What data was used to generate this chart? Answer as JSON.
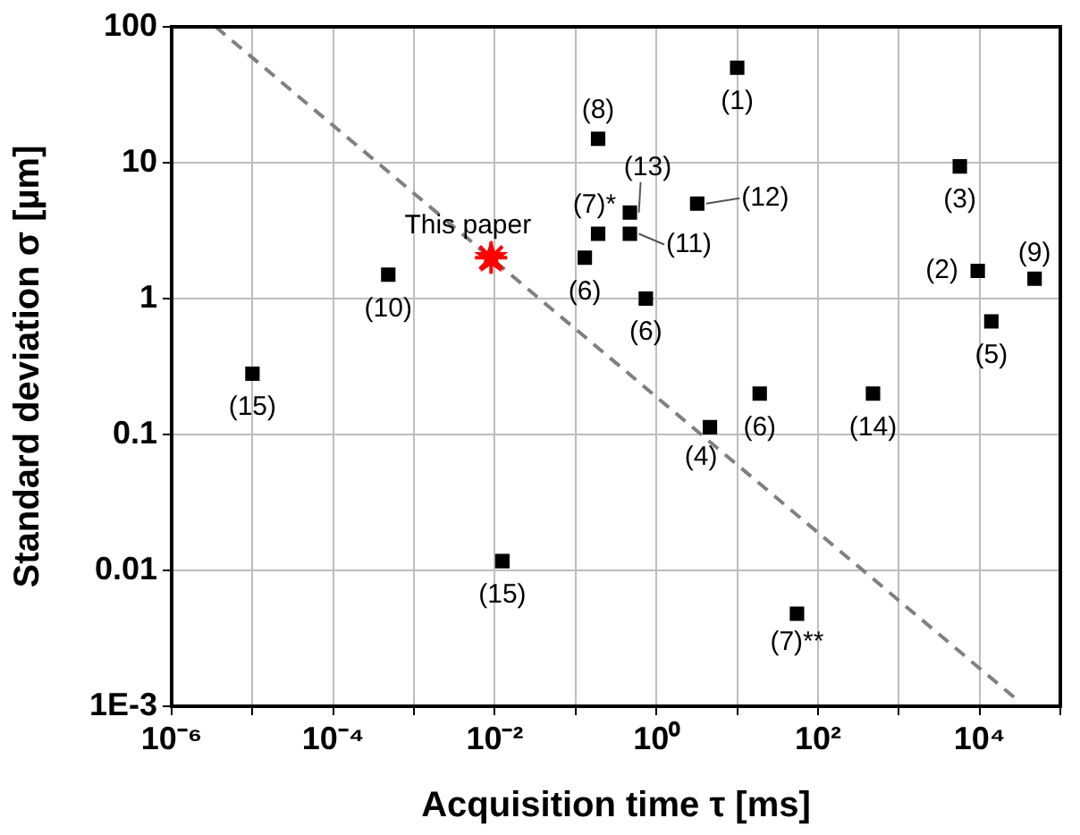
{
  "chart_data": {
    "type": "scatter",
    "xlabel": "Acquisition time τ [ms]",
    "ylabel": "Standard deviation σ [µm]",
    "log": "xy",
    "grid": true,
    "legend": false,
    "xlim": [
      1e-06,
      100000
    ],
    "ylim": [
      0.001,
      100
    ],
    "xticks": [
      {
        "value": 1e-06,
        "label": "10⁻⁶"
      },
      {
        "value": 1e-05,
        "label": null
      },
      {
        "value": 0.0001,
        "label": "10⁻⁴"
      },
      {
        "value": 0.001,
        "label": null
      },
      {
        "value": 0.01,
        "label": "10⁻²"
      },
      {
        "value": 0.1,
        "label": null
      },
      {
        "value": 1,
        "label": "10⁰"
      },
      {
        "value": 10,
        "label": null
      },
      {
        "value": 100,
        "label": "10²"
      },
      {
        "value": 1000,
        "label": null
      },
      {
        "value": 10000,
        "label": "10⁴"
      },
      {
        "value": 100000,
        "label": null
      }
    ],
    "yticks": [
      {
        "value": 0.001,
        "label": "1E-3"
      },
      0.01,
      0.1,
      1,
      10,
      100
    ],
    "series": [
      {
        "color": "#000000",
        "marker": "square",
        "x": [
          1e-05,
          0.00048,
          0.13,
          0.19,
          0.19,
          10,
          0.47,
          0.47,
          3.2,
          0.74,
          5700,
          9500,
          48000,
          14000,
          19,
          480,
          4.6,
          0.0124,
          55
        ],
        "values": [
          0.28,
          1.5,
          2.0,
          3.0,
          15,
          50,
          4.3,
          3.0,
          5.0,
          1.0,
          9.4,
          1.6,
          1.4,
          0.68,
          0.2,
          0.2,
          0.113,
          0.0117,
          0.0048
        ]
      },
      {
        "name": "This paper",
        "color": "#ff0000",
        "marker": "star",
        "x": [
          0.009
        ],
        "values": [
          2.0
        ]
      },
      {
        "type": "line",
        "color": "#808080",
        "line_style": "dashed",
        "marker": "none",
        "x": [
          3.5e-06,
          30000
        ],
        "values": [
          100,
          0.0011
        ]
      }
    ],
    "annotations": [
      {
        "text": "(15)",
        "x": 1e-05,
        "y": 0.28
      },
      {
        "text": "(10)",
        "x": 0.00048,
        "y": 1.5
      },
      {
        "text": "(6)",
        "x": 0.13,
        "y": 2.0
      },
      {
        "text": "(7)*",
        "x": 0.19,
        "y": 3.0
      },
      {
        "text": "(8)",
        "x": 0.19,
        "y": 15
      },
      {
        "text": "(1)",
        "x": 10,
        "y": 50
      },
      {
        "text": "(13)",
        "x": 0.47,
        "y": 4.3
      },
      {
        "text": "(11)",
        "x": 0.47,
        "y": 3.0
      },
      {
        "text": "(12)",
        "x": 3.2,
        "y": 5.0
      },
      {
        "text": "(6)",
        "x": 0.74,
        "y": 1.0
      },
      {
        "text": "(3)",
        "x": 5700,
        "y": 9.4
      },
      {
        "text": "(2)",
        "x": 9500,
        "y": 1.6
      },
      {
        "text": "(9)",
        "x": 48000,
        "y": 1.4
      },
      {
        "text": "(5)",
        "x": 14000,
        "y": 0.68
      },
      {
        "text": "(6)",
        "x": 19,
        "y": 0.2
      },
      {
        "text": "(14)",
        "x": 480,
        "y": 0.2
      },
      {
        "text": "(4)",
        "x": 4.6,
        "y": 0.113
      },
      {
        "text": "(15)",
        "x": 0.0124,
        "y": 0.0117
      },
      {
        "text": "(7)**",
        "x": 55,
        "y": 0.0048
      }
    ]
  }
}
